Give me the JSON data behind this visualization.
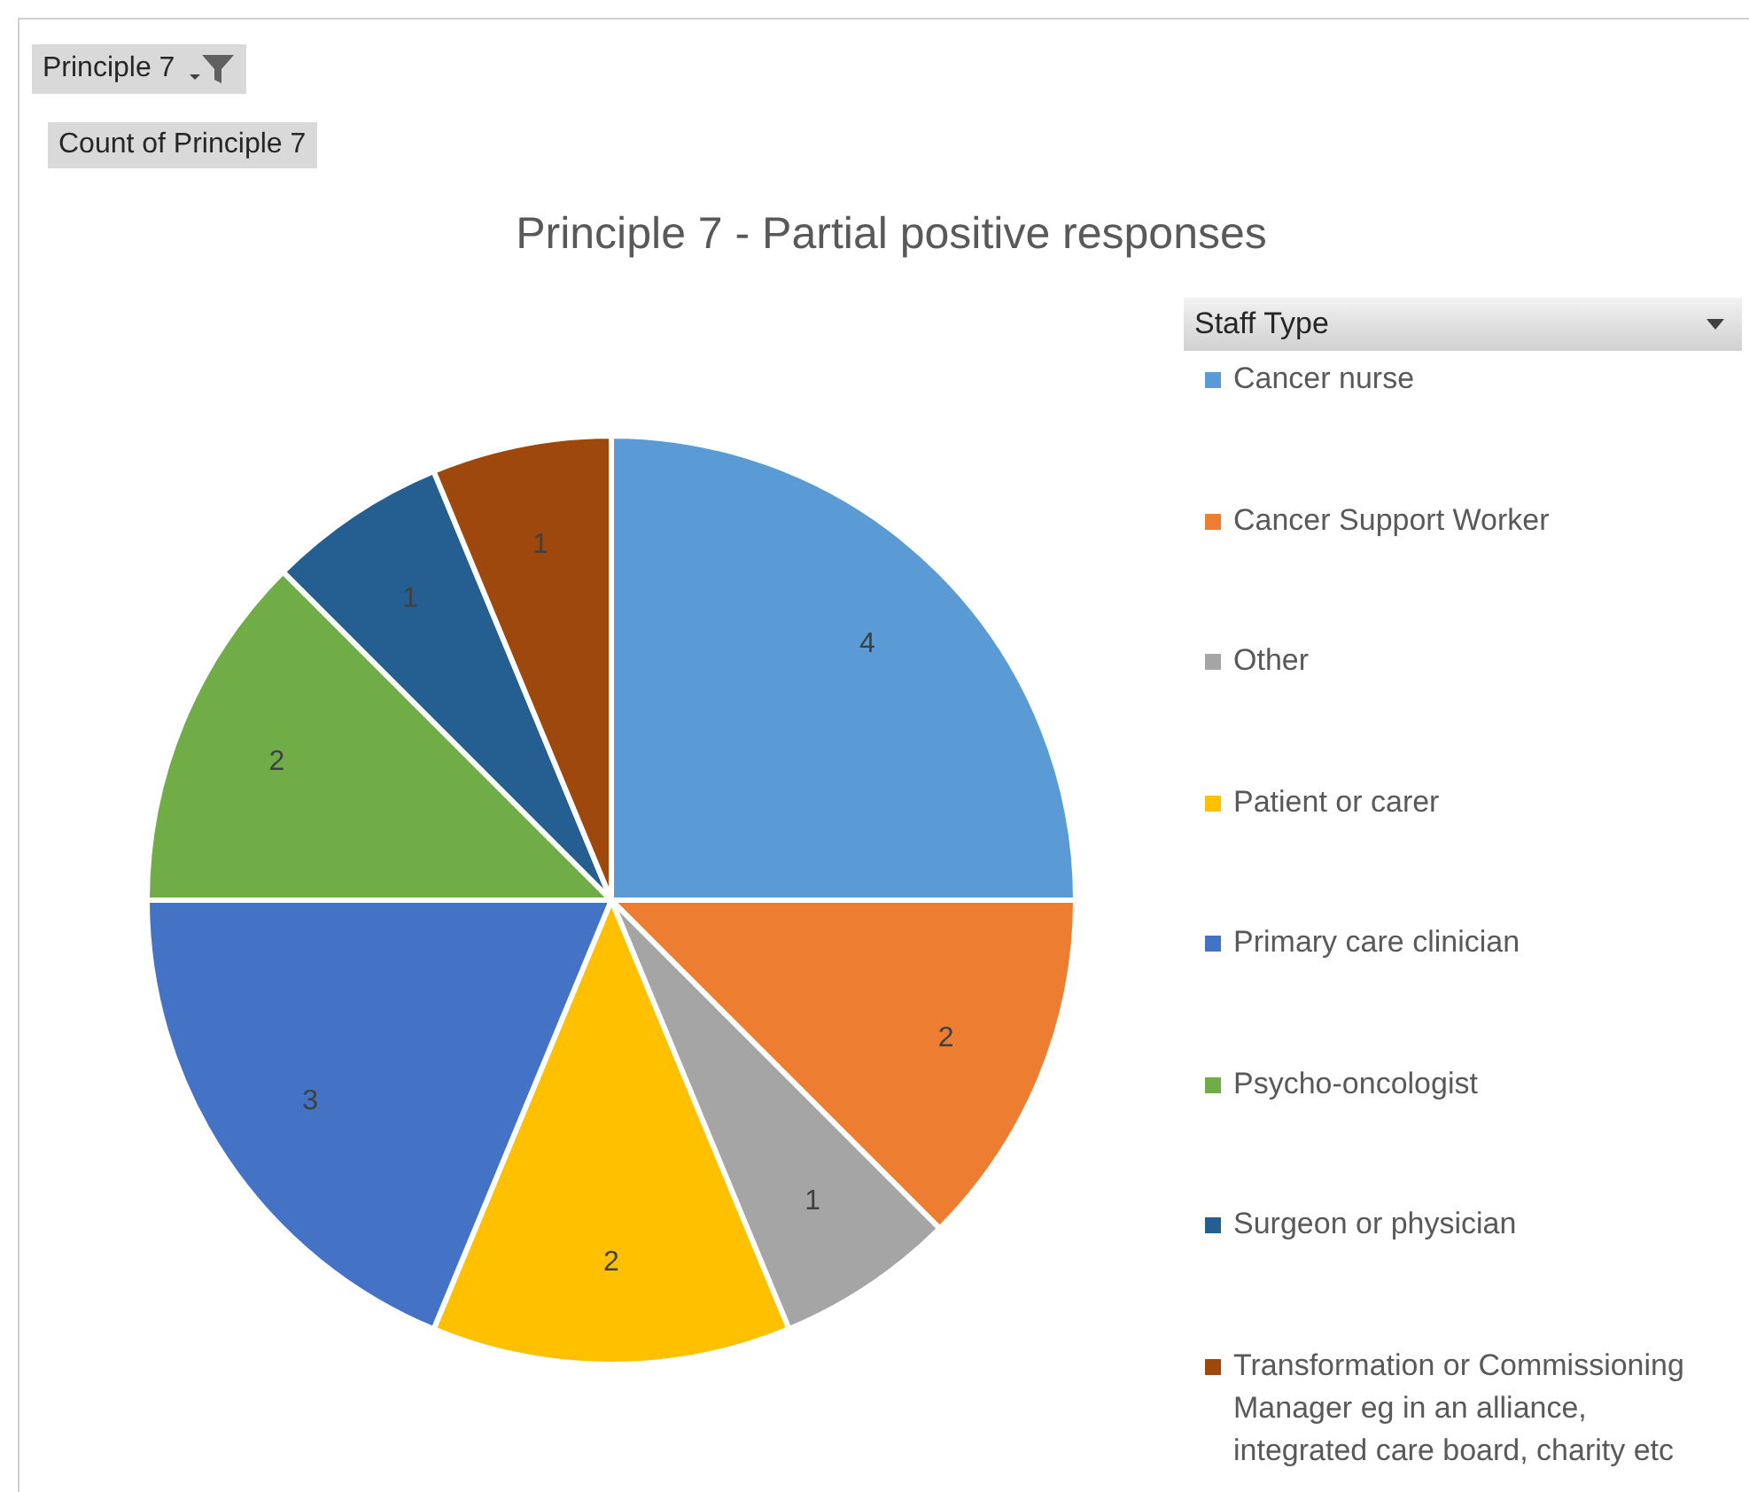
{
  "chart_data": {
    "type": "pie",
    "title": "Principle 7 - Partial positive responses",
    "annotations": [
      "Principle 7",
      "Count of Principle 7"
    ],
    "legend_title": "Staff Type",
    "legend": "right",
    "data_labels": true,
    "categories": [
      "Cancer nurse",
      "Cancer Support Worker",
      "Other",
      "Patient or carer",
      "Primary care clinician",
      "Psycho-oncologist",
      "Surgeon or physician",
      "Transformation or Commissioning Manager eg in an alliance, integrated care board, charity etc"
    ],
    "values": [
      4,
      2,
      1,
      2,
      3,
      2,
      1,
      1
    ],
    "colors": [
      "#5b9bd5",
      "#ed7d31",
      "#a5a5a5",
      "#ffc000",
      "#4472c4",
      "#70ad47",
      "#255e91",
      "#9e480e"
    ]
  }
}
